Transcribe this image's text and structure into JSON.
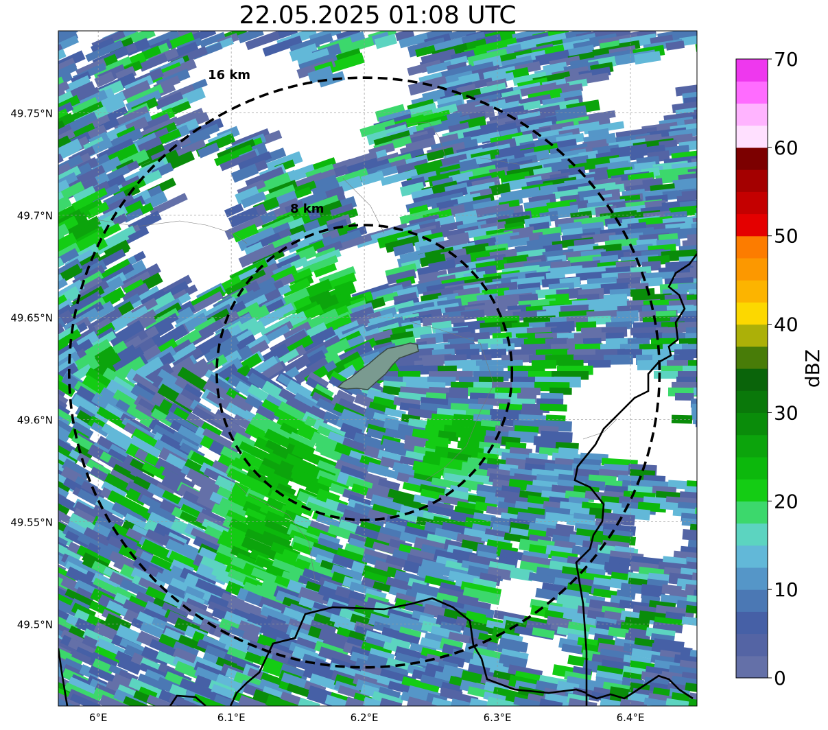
{
  "title": "22.05.2025 01:08 UTC",
  "map": {
    "lon_range": [
      5.97,
      6.45
    ],
    "lat_range": [
      49.46,
      49.79
    ],
    "lon_ticks": [
      {
        "value": 6.0,
        "label": "6°E"
      },
      {
        "value": 6.1,
        "label": "6.1°E"
      },
      {
        "value": 6.2,
        "label": "6.2°E"
      },
      {
        "value": 6.3,
        "label": "6.3°E"
      },
      {
        "value": 6.4,
        "label": "6.4°E"
      }
    ],
    "lat_ticks": [
      {
        "value": 49.75,
        "label": "49.75°N"
      },
      {
        "value": 49.7,
        "label": "49.7°N"
      },
      {
        "value": 49.65,
        "label": "49.65°N"
      },
      {
        "value": 49.6,
        "label": "49.6°N"
      },
      {
        "value": 49.55,
        "label": "49.55°N"
      },
      {
        "value": 49.5,
        "label": "49.5°N"
      }
    ],
    "grid": true,
    "center": {
      "lon": 6.2,
      "lat": 49.623
    },
    "range_rings": [
      {
        "radius_km": 8,
        "label": "8 km"
      },
      {
        "radius_km": 16,
        "label": "16 km"
      }
    ]
  },
  "colorbar": {
    "label": "dBZ",
    "min": 0,
    "max": 70,
    "tick_labels": [
      "0",
      "10",
      "20",
      "30",
      "40",
      "50",
      "60",
      "70"
    ],
    "colors": [
      "#6470a8",
      "#5464a4",
      "#4660a6",
      "#4b78b4",
      "#5596c8",
      "#62b8d8",
      "#5cd4c0",
      "#3cd86c",
      "#14cc14",
      "#0cb80c",
      "#0ca40c",
      "#0a8c0a",
      "#0a780a",
      "#0a640a",
      "#487c08",
      "#acb008",
      "#fcd800",
      "#fcb400",
      "#fc9800",
      "#fc7c00",
      "#e40000",
      "#c40000",
      "#a40000",
      "#7c0000",
      "#ffe0ff",
      "#ffb4ff",
      "#ff6cff",
      "#ee38ee"
    ]
  }
}
